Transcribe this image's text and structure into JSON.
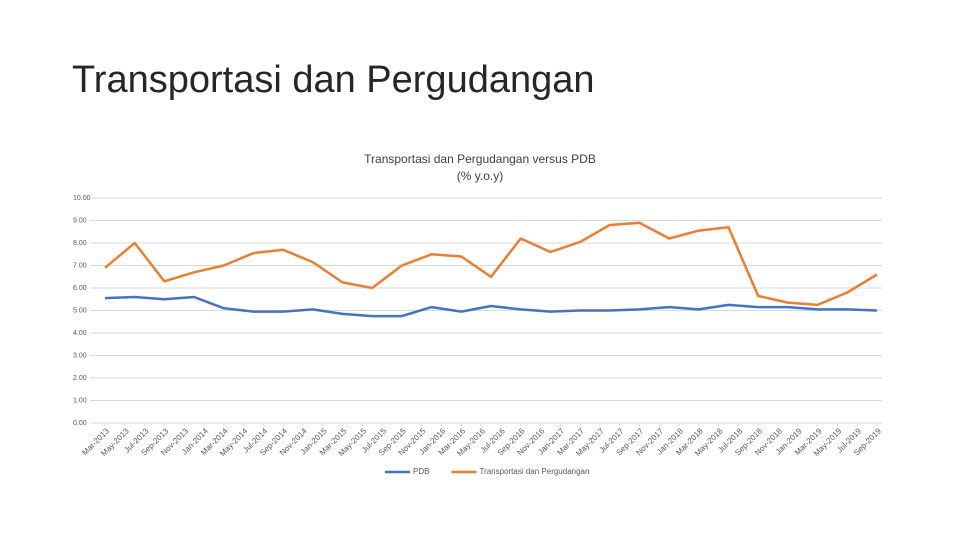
{
  "page_title": "Transportasi dan Pergudangan",
  "chart_data": {
    "type": "line",
    "title": "Transportasi dan Pergudangan versus PDB",
    "subtitle": "(% y.o.y)",
    "x": [
      "2013-03",
      "2013-06",
      "2013-09",
      "2013-12",
      "2014-03",
      "2014-06",
      "2014-09",
      "2014-12",
      "2015-03",
      "2015-06",
      "2015-09",
      "2015-12",
      "2016-03",
      "2016-06",
      "2016-09",
      "2016-12",
      "2017-03",
      "2017-06",
      "2017-09",
      "2017-12",
      "2018-03",
      "2018-06",
      "2018-09",
      "2018-12",
      "2019-03",
      "2019-06",
      "2019-09"
    ],
    "series": [
      {
        "name": "PDB",
        "color": "#4472c4",
        "values": [
          5.55,
          5.6,
          5.5,
          5.6,
          5.1,
          4.95,
          4.95,
          5.05,
          4.85,
          4.75,
          4.75,
          5.15,
          4.95,
          5.2,
          5.05,
          4.95,
          5.0,
          5.0,
          5.05,
          5.15,
          5.05,
          5.25,
          5.15,
          5.15,
          5.05,
          5.05,
          5.0
        ]
      },
      {
        "name": "Transportasi dan Pergudangan",
        "color": "#ed7d31",
        "values": [
          6.9,
          8.0,
          6.3,
          6.7,
          7.0,
          7.55,
          7.7,
          7.15,
          6.25,
          6.0,
          7.0,
          7.5,
          7.4,
          6.5,
          8.2,
          7.6,
          8.05,
          8.8,
          8.9,
          8.2,
          8.55,
          8.7,
          5.65,
          5.35,
          5.25,
          5.8,
          6.6
        ]
      }
    ],
    "xticks": [
      {
        "value": "2013-03",
        "label": "Mar-2013"
      },
      {
        "value": "2013-05",
        "label": "May-2013"
      },
      {
        "value": "2013-07",
        "label": "Jul-2013"
      },
      {
        "value": "2013-09",
        "label": "Sep-2013"
      },
      {
        "value": "2013-11",
        "label": "Nov-2013"
      },
      {
        "value": "2014-01",
        "label": "Jan-2014"
      },
      {
        "value": "2014-03",
        "label": "Mar-2014"
      },
      {
        "value": "2014-05",
        "label": "May-2014"
      },
      {
        "value": "2014-07",
        "label": "Jul-2014"
      },
      {
        "value": "2014-09",
        "label": "Sep-2014"
      },
      {
        "value": "2014-11",
        "label": "Nov-2014"
      },
      {
        "value": "2015-01",
        "label": "Jan-2015"
      },
      {
        "value": "2015-03",
        "label": "Mar-2015"
      },
      {
        "value": "2015-05",
        "label": "May-2015"
      },
      {
        "value": "2015-07",
        "label": "Jul-2015"
      },
      {
        "value": "2015-09",
        "label": "Sep-2015"
      },
      {
        "value": "2015-11",
        "label": "Nov-2015"
      },
      {
        "value": "2016-01",
        "label": "Jan-2016"
      },
      {
        "value": "2016-03",
        "label": "Mar-2016"
      },
      {
        "value": "2016-05",
        "label": "May-2016"
      },
      {
        "value": "2016-07",
        "label": "Jul-2016"
      },
      {
        "value": "2016-09",
        "label": "Sep-2016"
      },
      {
        "value": "2016-11",
        "label": "Nov-2016"
      },
      {
        "value": "2017-01",
        "label": "Jan-2017"
      },
      {
        "value": "2017-03",
        "label": "Mar-2017"
      },
      {
        "value": "2017-05",
        "label": "May-2017"
      },
      {
        "value": "2017-07",
        "label": "Jul-2017"
      },
      {
        "value": "2017-09",
        "label": "Sep-2017"
      },
      {
        "value": "2017-11",
        "label": "Nov-2017"
      },
      {
        "value": "2018-01",
        "label": "Jan-2018"
      },
      {
        "value": "2018-03",
        "label": "Mar-2018"
      },
      {
        "value": "2018-05",
        "label": "May-2018"
      },
      {
        "value": "2018-07",
        "label": "Jul-2018"
      },
      {
        "value": "2018-09",
        "label": "Sep-2018"
      },
      {
        "value": "2018-11",
        "label": "Nov-2018"
      },
      {
        "value": "2019-01",
        "label": "Jan-2019"
      },
      {
        "value": "2019-03",
        "label": "Mar-2019"
      },
      {
        "value": "2019-05",
        "label": "May-2019"
      },
      {
        "value": "2019-07",
        "label": "Jul-2019"
      },
      {
        "value": "2019-09",
        "label": "Sep-2019"
      }
    ],
    "ylim": [
      0,
      10
    ],
    "yticks": [
      {
        "value": 0,
        "label": "0.00"
      },
      {
        "value": 1,
        "label": "1.00"
      },
      {
        "value": 2,
        "label": "2.00"
      },
      {
        "value": 3,
        "label": "3.00"
      },
      {
        "value": 4,
        "label": "4.00"
      },
      {
        "value": 5,
        "label": "5.00"
      },
      {
        "value": 6,
        "label": "6.00"
      },
      {
        "value": 7,
        "label": "7.00"
      },
      {
        "value": 8,
        "label": "8.00"
      },
      {
        "value": 9,
        "label": "9.00"
      },
      {
        "value": 10,
        "label": "10.00"
      }
    ],
    "grid": true,
    "legend": "bottom"
  }
}
